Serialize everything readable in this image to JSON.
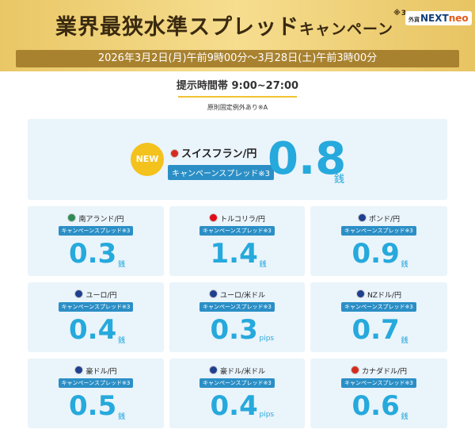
{
  "header": {
    "title": "業界最狭水準スプレッド",
    "title_suffix": "キャンペーン",
    "title_note": "※3",
    "logo_prefix": "外貨",
    "logo_main": "NEXT",
    "logo_suffix": "neo",
    "period": "2026年3月2日(月)午前9時00分～3月28日(土)午前3時00分"
  },
  "time_band": {
    "label": "提示時間帯 9:00~27:00",
    "note": "原則固定例外あり※A"
  },
  "featured": {
    "badge": "NEW",
    "pair": "スイスフラン/円",
    "tag": "キャンペーンスプレッド※3",
    "value": 0.8,
    "unit": "銭"
  },
  "cards": [
    {
      "pair": "南アランド/円",
      "tag": "キャンペーンスプレッド※3",
      "value": 0.3,
      "unit": "銭"
    },
    {
      "pair": "トルコリラ/円",
      "tag": "キャンペーンスプレッド※3",
      "value": 1.4,
      "unit": "銭"
    },
    {
      "pair": "ポンド/円",
      "tag": "キャンペーンスプレッド※3",
      "value": 0.9,
      "unit": "銭"
    },
    {
      "pair": "ユーロ/円",
      "tag": "キャンペーンスプレッド※3",
      "value": 0.4,
      "unit": "銭"
    },
    {
      "pair": "ユーロ/米ドル",
      "tag": "キャンペーンスプレッド※3",
      "value": 0.3,
      "unit": "pips"
    },
    {
      "pair": "NZドル/円",
      "tag": "キャンペーンスプレッド※3",
      "value": 0.7,
      "unit": "銭"
    },
    {
      "pair": "豪ドル/円",
      "tag": "キャンペーンスプレッド※3",
      "value": 0.5,
      "unit": "銭"
    },
    {
      "pair": "豪ドル/米ドル",
      "tag": "キャンペーンスプレッド※3",
      "value": 0.4,
      "unit": "pips"
    },
    {
      "pair": "カナダドル/円",
      "tag": "キャンペーンスプレッド※3",
      "value": 0.6,
      "unit": "銭"
    }
  ]
}
